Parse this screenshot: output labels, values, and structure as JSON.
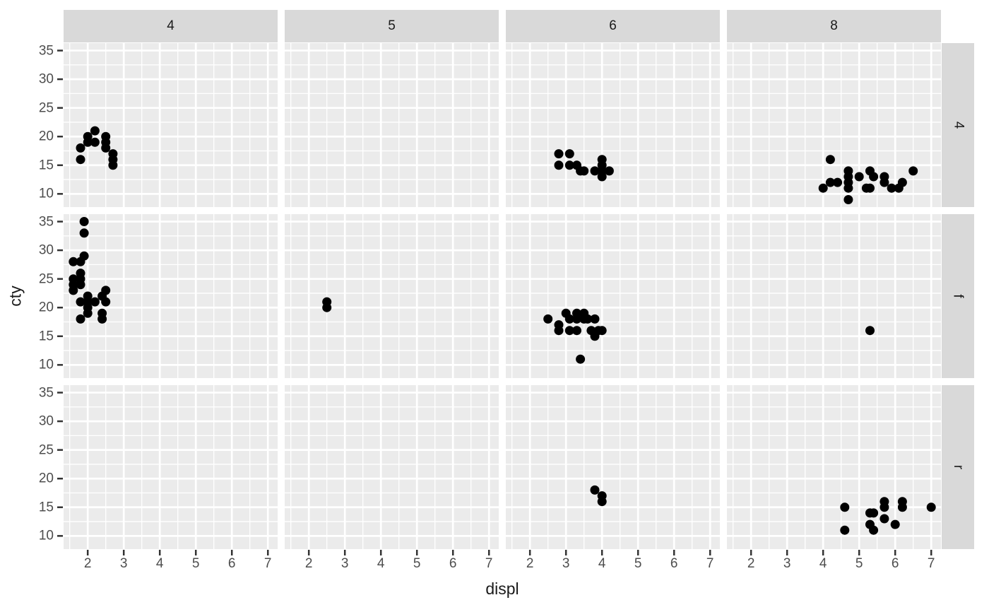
{
  "figure": {
    "kind": "ggplot-facet-grid-scatter",
    "colors": {
      "panel_bg": "#EBEBEB",
      "strip_bg": "#D9D9D9",
      "grid_line": "#FFFFFF",
      "point": "#000000",
      "tick_mark": "#333333",
      "tick_label": "#4D4D4D",
      "axis_title": "#1A1A1A",
      "strip_text": "#1A1A1A"
    }
  },
  "chart_data": {
    "type": "scatter",
    "title": "",
    "xlabel": "displ",
    "ylabel": "cty",
    "grid": true,
    "legend": "none",
    "facet": {
      "cols_var": "cyl",
      "rows_var": "drv",
      "col_labels": [
        "4",
        "5",
        "6",
        "8"
      ],
      "row_labels": [
        "4",
        "f",
        "r"
      ]
    },
    "x_ticks": [
      2,
      3,
      4,
      5,
      6,
      7
    ],
    "y_ticks": [
      10,
      15,
      20,
      25,
      30,
      35
    ],
    "x_minor": [
      1.5,
      2.5,
      3.5,
      4.5,
      5.5,
      6.5
    ],
    "y_minor": [
      12.5,
      17.5,
      22.5,
      27.5,
      32.5
    ],
    "xlim": [
      1.33,
      7.27
    ],
    "ylim": [
      7.7,
      36.3
    ],
    "facets": [
      {
        "col": "4",
        "row": "4",
        "points": [
          [
            1.8,
            18
          ],
          [
            1.8,
            16
          ],
          [
            2.0,
            20
          ],
          [
            2.0,
            19
          ],
          [
            2.2,
            21
          ],
          [
            2.2,
            19
          ],
          [
            2.5,
            20
          ],
          [
            2.5,
            19
          ],
          [
            2.5,
            18
          ],
          [
            2.7,
            17
          ],
          [
            2.7,
            16
          ],
          [
            2.7,
            15
          ]
        ]
      },
      {
        "col": "5",
        "row": "4",
        "points": []
      },
      {
        "col": "6",
        "row": "4",
        "points": [
          [
            2.8,
            17
          ],
          [
            3.1,
            17
          ],
          [
            2.8,
            15
          ],
          [
            3.1,
            15
          ],
          [
            3.3,
            15
          ],
          [
            3.4,
            14
          ],
          [
            3.5,
            14
          ],
          [
            3.8,
            14
          ],
          [
            4.0,
            16
          ],
          [
            4.0,
            15
          ],
          [
            4.0,
            14
          ],
          [
            4.0,
            13
          ],
          [
            4.2,
            14
          ]
        ]
      },
      {
        "col": "8",
        "row": "4",
        "points": [
          [
            4.2,
            16
          ],
          [
            4.0,
            11
          ],
          [
            4.2,
            12
          ],
          [
            4.4,
            12
          ],
          [
            4.7,
            14
          ],
          [
            4.7,
            13
          ],
          [
            4.7,
            12
          ],
          [
            4.7,
            11
          ],
          [
            4.7,
            9
          ],
          [
            5.0,
            13
          ],
          [
            5.2,
            11
          ],
          [
            5.3,
            14
          ],
          [
            5.3,
            11
          ],
          [
            5.4,
            13
          ],
          [
            5.7,
            13
          ],
          [
            5.7,
            12
          ],
          [
            5.9,
            11
          ],
          [
            6.1,
            11
          ],
          [
            6.2,
            12
          ],
          [
            6.5,
            14
          ]
        ]
      },
      {
        "col": "4",
        "row": "f",
        "points": [
          [
            1.9,
            35
          ],
          [
            1.9,
            33
          ],
          [
            1.9,
            29
          ],
          [
            1.6,
            28
          ],
          [
            1.8,
            28
          ],
          [
            1.8,
            26
          ],
          [
            1.8,
            25
          ],
          [
            1.6,
            25
          ],
          [
            1.6,
            24
          ],
          [
            1.8,
            24
          ],
          [
            1.6,
            23
          ],
          [
            2.0,
            22
          ],
          [
            2.0,
            21
          ],
          [
            1.8,
            21
          ],
          [
            2.2,
            21
          ],
          [
            2.0,
            20
          ],
          [
            2.0,
            19
          ],
          [
            1.8,
            18
          ],
          [
            2.5,
            23
          ],
          [
            2.4,
            22
          ],
          [
            2.5,
            21
          ],
          [
            2.4,
            19
          ],
          [
            2.4,
            18
          ]
        ]
      },
      {
        "col": "5",
        "row": "f",
        "points": [
          [
            2.5,
            21
          ],
          [
            2.5,
            20
          ]
        ]
      },
      {
        "col": "6",
        "row": "f",
        "points": [
          [
            2.5,
            18
          ],
          [
            2.8,
            17
          ],
          [
            2.8,
            16
          ],
          [
            3.0,
            19
          ],
          [
            3.1,
            18
          ],
          [
            3.1,
            16
          ],
          [
            3.3,
            19
          ],
          [
            3.3,
            18
          ],
          [
            3.3,
            16
          ],
          [
            3.5,
            19
          ],
          [
            3.5,
            18
          ],
          [
            3.6,
            18
          ],
          [
            3.7,
            16
          ],
          [
            3.8,
            18
          ],
          [
            3.9,
            16
          ],
          [
            3.8,
            15
          ],
          [
            4.0,
            16
          ],
          [
            3.4,
            11
          ]
        ]
      },
      {
        "col": "8",
        "row": "f",
        "points": [
          [
            5.3,
            16
          ]
        ]
      },
      {
        "col": "4",
        "row": "r",
        "points": []
      },
      {
        "col": "5",
        "row": "r",
        "points": []
      },
      {
        "col": "6",
        "row": "r",
        "points": [
          [
            3.8,
            18
          ],
          [
            4.0,
            17
          ],
          [
            4.0,
            16
          ]
        ]
      },
      {
        "col": "8",
        "row": "r",
        "points": [
          [
            4.6,
            15
          ],
          [
            4.6,
            11
          ],
          [
            5.3,
            14
          ],
          [
            5.4,
            14
          ],
          [
            5.3,
            12
          ],
          [
            5.4,
            11
          ],
          [
            5.7,
            16
          ],
          [
            5.7,
            15
          ],
          [
            5.7,
            13
          ],
          [
            6.0,
            12
          ],
          [
            6.2,
            16
          ],
          [
            6.2,
            15
          ],
          [
            7.0,
            15
          ]
        ]
      }
    ]
  }
}
